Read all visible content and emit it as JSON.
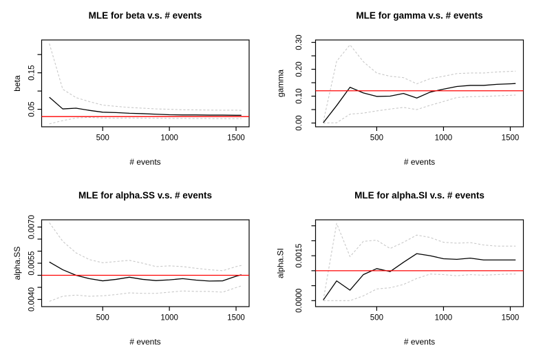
{
  "figure": {
    "background": "#ffffff",
    "panel_grid": "2 x 2"
  },
  "colors": {
    "mle_line": "#000000",
    "confidence_band": "#c8c8c8",
    "true_value_line": "#ff0000",
    "plot_border": "#000000"
  },
  "chart_data": [
    {
      "id": "beta",
      "type": "line",
      "title": "MLE for beta v.s. # events",
      "xlabel": "# events",
      "ylabel": "beta",
      "x": [
        100,
        200,
        300,
        400,
        500,
        600,
        700,
        800,
        900,
        1000,
        1100,
        1200,
        1300,
        1400,
        1500,
        1540
      ],
      "series": [
        {
          "name": "mle",
          "style": "solid",
          "color": "#000000",
          "values": [
            0.083,
            0.051,
            0.053,
            0.047,
            0.042,
            0.041,
            0.039,
            0.038,
            0.0365,
            0.035,
            0.0345,
            0.0345,
            0.034,
            0.034,
            0.0335,
            0.0335
          ]
        },
        {
          "name": "ci-upper",
          "style": "dashed",
          "color": "#c8c8c8",
          "values": [
            0.23,
            0.105,
            0.082,
            0.071,
            0.0615,
            0.058,
            0.055,
            0.053,
            0.051,
            0.05,
            0.0487,
            0.0484,
            0.0478,
            0.0475,
            0.0475,
            0.047
          ]
        },
        {
          "name": "ci-lower",
          "style": "dashed",
          "color": "#c8c8c8",
          "values": [
            0.01,
            0.019,
            0.026,
            0.0276,
            0.026,
            0.0256,
            0.026,
            0.0256,
            0.0256,
            0.025,
            0.025,
            0.0247,
            0.0247,
            0.0244,
            0.0244,
            0.0244
          ]
        }
      ],
      "true_value": 0.03,
      "true_value_color": "#ff0000",
      "xlim": [
        42,
        1598
      ],
      "ylim": [
        0.002,
        0.24
      ],
      "x_ticks": {
        "values": [
          500,
          1000,
          1500
        ],
        "labels": [
          "500",
          "1000",
          "1500"
        ]
      },
      "y_ticks": {
        "values": [
          0.05,
          0.1,
          0.15,
          0.2
        ],
        "labels": [
          "0.05",
          "",
          "0.15",
          ""
        ]
      }
    },
    {
      "id": "gamma",
      "type": "line",
      "title": "MLE for gamma v.s. # events",
      "xlabel": "# events",
      "ylabel": "gamma",
      "x": [
        100,
        200,
        300,
        400,
        500,
        600,
        700,
        800,
        900,
        1000,
        1100,
        1200,
        1300,
        1400,
        1500,
        1540
      ],
      "series": [
        {
          "name": "mle",
          "style": "solid",
          "color": "#000000",
          "values": [
            0.001,
            0.065,
            0.133,
            0.112,
            0.099,
            0.1,
            0.11,
            0.093,
            0.115,
            0.126,
            0.136,
            0.14,
            0.14,
            0.144,
            0.146,
            0.147
          ]
        },
        {
          "name": "ci-upper",
          "style": "dashed",
          "color": "#c8c8c8",
          "values": [
            0.005,
            0.23,
            0.291,
            0.228,
            0.186,
            0.174,
            0.169,
            0.146,
            0.165,
            0.174,
            0.184,
            0.186,
            0.186,
            0.19,
            0.192,
            0.193
          ]
        },
        {
          "name": "ci-lower",
          "style": "dashed",
          "color": "#c8c8c8",
          "values": [
            0.0,
            0.001,
            0.033,
            0.037,
            0.045,
            0.052,
            0.058,
            0.05,
            0.066,
            0.08,
            0.095,
            0.098,
            0.099,
            0.101,
            0.103,
            0.104
          ]
        }
      ],
      "true_value": 0.12,
      "true_value_color": "#ff0000",
      "xlim": [
        42,
        1598
      ],
      "ylim": [
        -0.014,
        0.309
      ],
      "x_ticks": {
        "values": [
          500,
          1000,
          1500
        ],
        "labels": [
          "500",
          "1000",
          "1500"
        ]
      },
      "y_ticks": {
        "values": [
          0.0,
          0.05,
          0.1,
          0.15,
          0.2,
          0.25,
          0.3
        ],
        "labels": [
          "0.00",
          "",
          "0.10",
          "",
          "0.20",
          "",
          "0.30"
        ]
      }
    },
    {
      "id": "alpha.SS",
      "type": "line",
      "title": "MLE for alpha.SS v.s. # events",
      "xlabel": "# events",
      "ylabel": "alpha.SS",
      "x": [
        100,
        200,
        300,
        400,
        500,
        600,
        700,
        800,
        900,
        1000,
        1100,
        1200,
        1300,
        1400,
        1500,
        1540
      ],
      "series": [
        {
          "name": "mle",
          "style": "solid",
          "color": "#000000",
          "values": [
            0.00555,
            0.00523,
            0.005,
            0.00486,
            0.00477,
            0.00483,
            0.00492,
            0.00483,
            0.00478,
            0.00481,
            0.00486,
            0.0048,
            0.00476,
            0.00477,
            0.00496,
            0.00502
          ]
        },
        {
          "name": "ci-upper",
          "style": "dashed",
          "color": "#c8c8c8",
          "values": [
            0.00718,
            0.00641,
            0.00593,
            0.00565,
            0.00552,
            0.00557,
            0.00562,
            0.0055,
            0.00536,
            0.00539,
            0.00536,
            0.00529,
            0.00523,
            0.00519,
            0.00536,
            0.00541
          ]
        },
        {
          "name": "ci-lower",
          "style": "dashed",
          "color": "#c8c8c8",
          "values": [
            0.00392,
            0.00413,
            0.00418,
            0.00413,
            0.00415,
            0.0042,
            0.00427,
            0.00425,
            0.00425,
            0.0043,
            0.00435,
            0.00433,
            0.00433,
            0.0043,
            0.00449,
            0.00456
          ]
        }
      ],
      "true_value": 0.005,
      "true_value_color": "#ff0000",
      "xlim": [
        42,
        1598
      ],
      "ylim": [
        0.0037,
        0.0073
      ],
      "x_ticks": {
        "values": [
          500,
          1000,
          1500
        ],
        "labels": [
          "500",
          "1000",
          "1500"
        ]
      },
      "y_ticks": {
        "values": [
          0.004,
          0.0045,
          0.005,
          0.0055,
          0.006,
          0.0065,
          0.007
        ],
        "labels": [
          "0.0040",
          "",
          "",
          "0.0055",
          "",
          "",
          "0.0070"
        ]
      }
    },
    {
      "id": "alpha.SI",
      "type": "line",
      "title": "MLE for alpha.SI v.s. # events",
      "xlabel": "# events",
      "ylabel": "alpha.SI",
      "x": [
        100,
        200,
        300,
        400,
        500,
        600,
        700,
        800,
        900,
        1000,
        1100,
        1200,
        1300,
        1400,
        1500,
        1540
      ],
      "series": [
        {
          "name": "mle",
          "style": "solid",
          "color": "#000000",
          "values": [
            2e-05,
            0.00066,
            0.00035,
            0.00087,
            0.00107,
            0.00097,
            0.00128,
            0.00157,
            0.0015,
            0.0014,
            0.00138,
            0.00142,
            0.00136,
            0.00136,
            0.00136,
            0.00136
          ]
        },
        {
          "name": "ci-upper",
          "style": "dashed",
          "color": "#c8c8c8",
          "values": [
            2e-05,
            0.00258,
            0.00147,
            0.00198,
            0.00202,
            0.00174,
            0.00195,
            0.00219,
            0.00211,
            0.00195,
            0.00192,
            0.00194,
            0.00186,
            0.00182,
            0.00182,
            0.00182
          ]
        },
        {
          "name": "ci-lower",
          "style": "dashed",
          "color": "#c8c8c8",
          "values": [
            0.0,
            0.0,
            0.0,
            0.00016,
            0.00039,
            0.00043,
            0.00054,
            0.00074,
            0.00089,
            0.00087,
            0.00083,
            0.00087,
            0.00085,
            0.00087,
            0.00089,
            0.00089
          ]
        }
      ],
      "true_value": 0.001,
      "true_value_color": "#ff0000",
      "xlim": [
        42,
        1598
      ],
      "ylim": [
        -0.0002,
        0.0027
      ],
      "x_ticks": {
        "values": [
          500,
          1000,
          1500
        ],
        "labels": [
          "500",
          "1000",
          "1500"
        ]
      },
      "y_ticks": {
        "values": [
          0.0,
          0.0005,
          0.001,
          0.0015,
          0.002,
          0.0025
        ],
        "labels": [
          "0.0000",
          "",
          "",
          "0.0015",
          "",
          ""
        ]
      }
    }
  ]
}
